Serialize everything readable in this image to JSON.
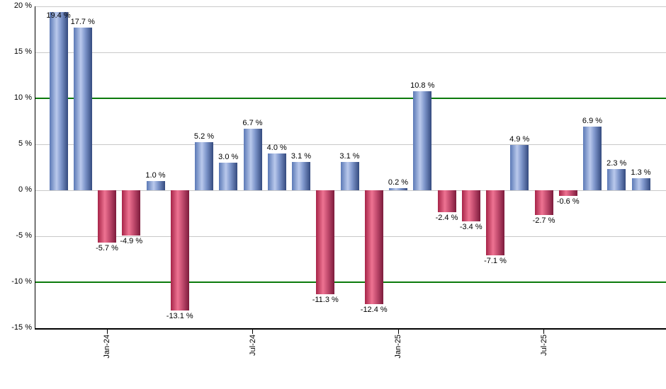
{
  "chart_data": {
    "type": "bar",
    "title": "",
    "unit": "%",
    "ylim": [
      -15,
      20
    ],
    "grid": "on",
    "legend": "none",
    "y_ticks": [
      {
        "value": 20,
        "label": "20 %"
      },
      {
        "value": 15,
        "label": "15 %"
      },
      {
        "value": 10,
        "label": "10 %"
      },
      {
        "value": 5,
        "label": "5 %"
      },
      {
        "value": 0,
        "label": "0 %"
      },
      {
        "value": -5,
        "label": "-5 %"
      },
      {
        "value": -10,
        "label": "-10 %"
      },
      {
        "value": -15,
        "label": "-15 %"
      }
    ],
    "highlight_gridline_values": [
      10,
      -10
    ],
    "x_tick_labels": [
      {
        "bar_index": 2,
        "label": "Jan-24"
      },
      {
        "bar_index": 8,
        "label": "Jul-24"
      },
      {
        "bar_index": 14,
        "label": "Jan-25"
      },
      {
        "bar_index": 20,
        "label": "Jul-25"
      }
    ],
    "bars": [
      {
        "month": "Nov-23",
        "value": 19.4,
        "label": "19.4 %"
      },
      {
        "month": "Dec-23",
        "value": 17.7,
        "label": "17.7 %"
      },
      {
        "month": "Jan-24",
        "value": -5.7,
        "label": "-5.7 %"
      },
      {
        "month": "Feb-24",
        "value": -4.9,
        "label": "-4.9 %"
      },
      {
        "month": "Mar-24",
        "value": 1.0,
        "label": "1.0 %"
      },
      {
        "month": "Apr-24",
        "value": -13.1,
        "label": "-13.1 %"
      },
      {
        "month": "May-24",
        "value": 5.2,
        "label": "5.2 %"
      },
      {
        "month": "Jun-24",
        "value": 3.0,
        "label": "3.0 %"
      },
      {
        "month": "Jul-24",
        "value": 6.7,
        "label": "6.7 %"
      },
      {
        "month": "Aug-24",
        "value": 4.0,
        "label": "4.0 %"
      },
      {
        "month": "Sep-24",
        "value": 3.1,
        "label": "3.1 %"
      },
      {
        "month": "Oct-24",
        "value": -11.3,
        "label": "-11.3 %"
      },
      {
        "month": "Nov-24",
        "value": 3.1,
        "label": "3.1 %"
      },
      {
        "month": "Dec-24",
        "value": -12.4,
        "label": "-12.4 %"
      },
      {
        "month": "Jan-25",
        "value": 0.2,
        "label": "0.2 %"
      },
      {
        "month": "Feb-25",
        "value": 10.8,
        "label": "10.8 %"
      },
      {
        "month": "Mar-25",
        "value": -2.4,
        "label": "-2.4 %"
      },
      {
        "month": "Apr-25",
        "value": -3.4,
        "label": "-3.4 %"
      },
      {
        "month": "May-25",
        "value": -7.1,
        "label": "-7.1 %"
      },
      {
        "month": "Jun-25",
        "value": 4.9,
        "label": "4.9 %"
      },
      {
        "month": "Jul-25",
        "value": -2.7,
        "label": "-2.7 %"
      },
      {
        "month": "Aug-25",
        "value": -0.6,
        "label": "-0.6 %"
      },
      {
        "month": "Sep-25",
        "value": 6.9,
        "label": "6.9 %"
      },
      {
        "month": "Oct-25",
        "value": 2.3,
        "label": "2.3 %"
      },
      {
        "month": "Nov-25",
        "value": 1.3,
        "label": "1.3 %"
      }
    ],
    "colors": {
      "positive_bar_gradient": [
        "#5b79b6",
        "#bac9ec",
        "#7f97cc",
        "#344a7e"
      ],
      "negative_bar_gradient": [
        "#a62448",
        "#ee7392",
        "#c64e71",
        "#7c1b3c"
      ],
      "gridline": "#c9c9c9",
      "highlight_gridline": "#0b7a0b",
      "axis": "#000000",
      "label_text": "#000000",
      "background": "#ffffff"
    }
  }
}
